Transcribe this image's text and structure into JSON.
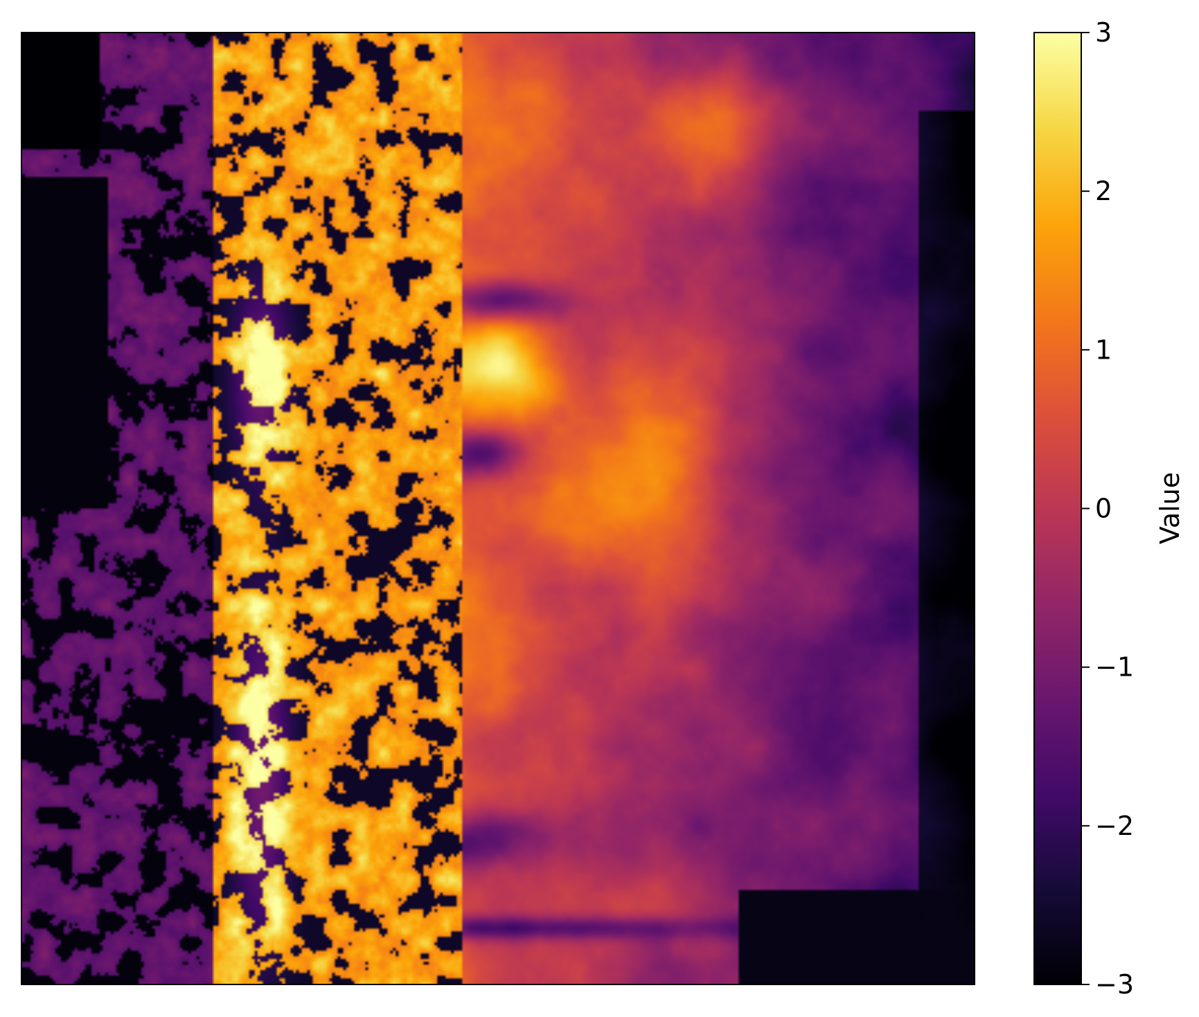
{
  "chart_data": {
    "type": "heatmap",
    "title": "",
    "xlabel": "",
    "ylabel": "",
    "colormap": "inferno",
    "vmin": -3,
    "vmax": 3,
    "colorbar": {
      "label": "Value",
      "ticks": [
        -3,
        -2,
        -1,
        0,
        1,
        2,
        3
      ],
      "tick_labels": [
        "−3",
        "−2",
        "−1",
        "0",
        "1",
        "2",
        "3"
      ]
    },
    "axes_ticks_visible": false,
    "grid": false,
    "description_values": {
      "western_coast_typical": -1.5,
      "central_icefield_peak": 3,
      "eastern_plains_typical": -1.8,
      "far_east_minimum": -3
    }
  }
}
